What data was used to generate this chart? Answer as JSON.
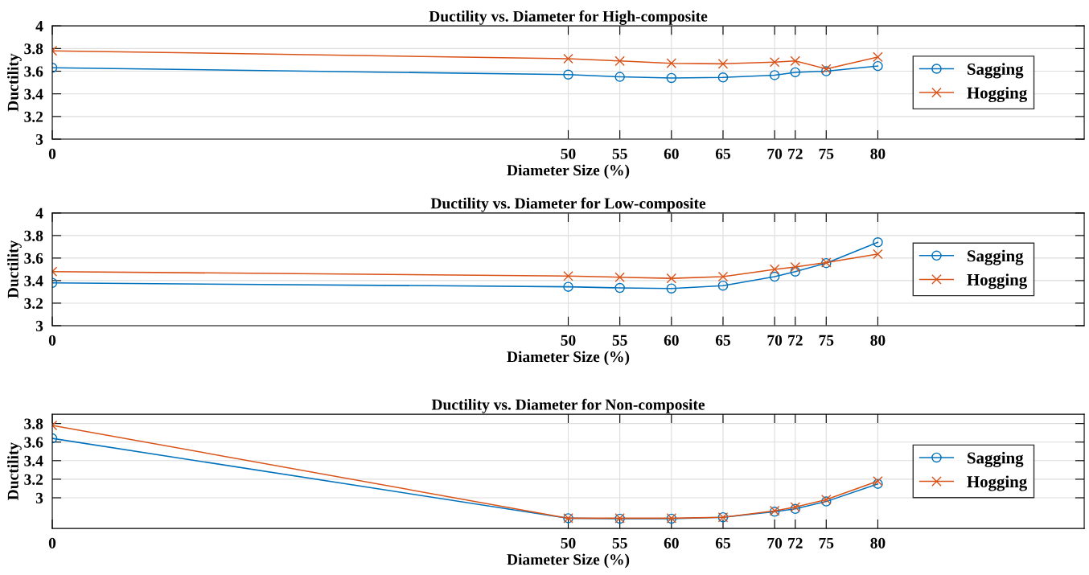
{
  "chart_data": [
    {
      "type": "line",
      "title": "Ductility vs. Diameter for High-composite",
      "xlabel": "Diameter Size (%)",
      "ylabel": "Ductility",
      "x": [
        0,
        50,
        55,
        60,
        65,
        70,
        72,
        75,
        80
      ],
      "xlim": [
        0,
        100
      ],
      "xticks": [
        0,
        50,
        55,
        60,
        65,
        70,
        72,
        75,
        80
      ],
      "ylim": [
        3,
        4
      ],
      "yticks": [
        3,
        3.2,
        3.4,
        3.6,
        3.8,
        4
      ],
      "grid": true,
      "legend": "right",
      "series": [
        {
          "name": "Sagging",
          "color": "#0072bd",
          "marker": "circle",
          "values": [
            3.63,
            3.57,
            3.55,
            3.54,
            3.545,
            3.565,
            3.59,
            3.6,
            3.645
          ]
        },
        {
          "name": "Hogging",
          "color": "#d95319",
          "marker": "cross",
          "values": [
            3.78,
            3.71,
            3.69,
            3.67,
            3.665,
            3.68,
            3.69,
            3.62,
            3.725
          ]
        }
      ]
    },
    {
      "type": "line",
      "title": "Ductility vs. Diameter for Low-composite",
      "xlabel": "Diameter Size (%)",
      "ylabel": "Ductility",
      "x": [
        0,
        50,
        55,
        60,
        65,
        70,
        72,
        75,
        80
      ],
      "xlim": [
        0,
        100
      ],
      "xticks": [
        0,
        50,
        55,
        60,
        65,
        70,
        72,
        75,
        80
      ],
      "ylim": [
        3,
        4
      ],
      "yticks": [
        3,
        3.2,
        3.4,
        3.6,
        3.8,
        4
      ],
      "grid": true,
      "legend": "right",
      "series": [
        {
          "name": "Sagging",
          "color": "#0072bd",
          "marker": "circle",
          "values": [
            3.38,
            3.345,
            3.335,
            3.33,
            3.355,
            3.435,
            3.48,
            3.555,
            3.74
          ]
        },
        {
          "name": "Hogging",
          "color": "#d95319",
          "marker": "cross",
          "values": [
            3.48,
            3.44,
            3.43,
            3.42,
            3.435,
            3.5,
            3.52,
            3.56,
            3.635
          ]
        }
      ]
    },
    {
      "type": "line",
      "title": "Ductility vs. Diameter for Non-composite",
      "xlabel": "Diameter Size (%)",
      "ylabel": "Ductility",
      "x": [
        0,
        50,
        55,
        60,
        65,
        70,
        72,
        75,
        80
      ],
      "xlim": [
        0,
        100
      ],
      "xticks": [
        0,
        50,
        55,
        60,
        65,
        70,
        72,
        75,
        80
      ],
      "ylim": [
        2.67,
        3.9
      ],
      "yticks": [
        3,
        3.2,
        3.4,
        3.6,
        3.8
      ],
      "grid": true,
      "legend": "right",
      "series": [
        {
          "name": "Sagging",
          "color": "#0072bd",
          "marker": "circle",
          "values": [
            3.64,
            2.78,
            2.775,
            2.775,
            2.79,
            2.85,
            2.88,
            2.96,
            3.15
          ]
        },
        {
          "name": "Hogging",
          "color": "#d95319",
          "marker": "cross",
          "values": [
            3.78,
            2.78,
            2.78,
            2.78,
            2.79,
            2.86,
            2.9,
            2.98,
            3.18
          ]
        }
      ]
    }
  ]
}
